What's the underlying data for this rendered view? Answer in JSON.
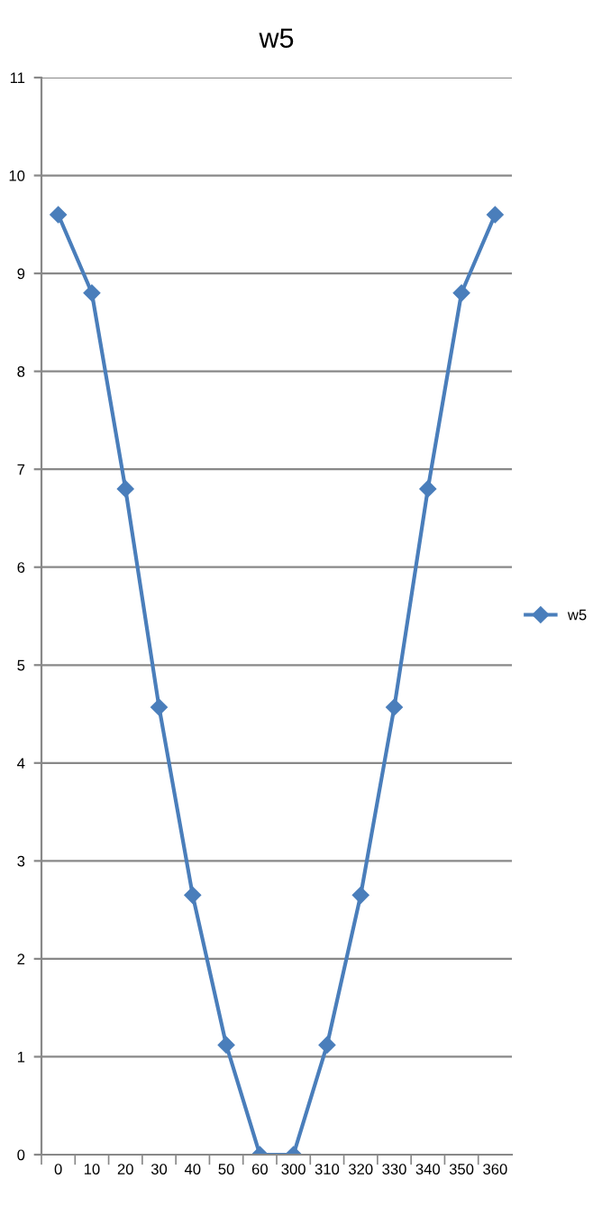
{
  "chart_data": {
    "type": "line",
    "title": "w5",
    "categories": [
      "0",
      "10",
      "20",
      "30",
      "40",
      "50",
      "60",
      "300",
      "310",
      "320",
      "330",
      "340",
      "350",
      "360"
    ],
    "series": [
      {
        "name": "w5",
        "color": "#4a7ebb",
        "values": [
          9.6,
          8.8,
          6.8,
          4.57,
          2.65,
          1.12,
          0,
          0,
          1.12,
          2.65,
          4.57,
          6.8,
          8.8,
          9.6
        ]
      }
    ],
    "ylim": [
      0,
      11
    ],
    "yticks": [
      0,
      1,
      2,
      3,
      4,
      5,
      6,
      7,
      8,
      9,
      10,
      11
    ],
    "grid": "y",
    "legend": "right",
    "marker": "diamond",
    "line_style": "solid"
  }
}
